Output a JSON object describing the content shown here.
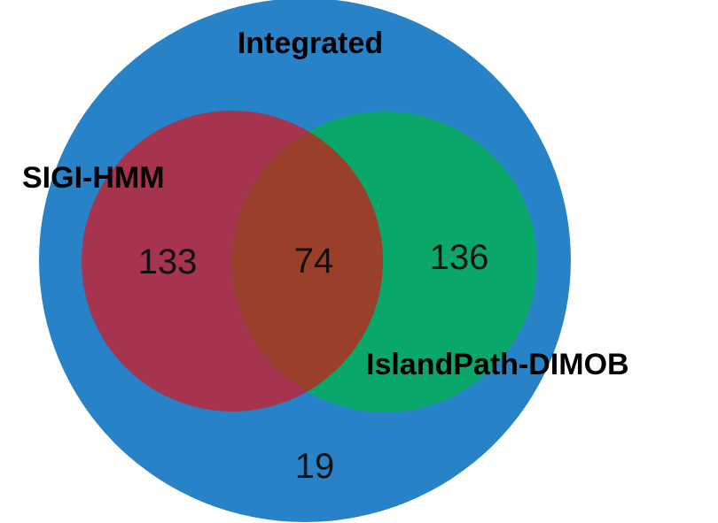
{
  "sets": {
    "integrated": {
      "label": "Integrated",
      "color": "#2882C8"
    },
    "sigi_hmm": {
      "label": "SIGI-HMM",
      "color": "#A6344F"
    },
    "islandpath_dimob": {
      "label": "IslandPath-DIMOB",
      "color": "#0AA76A"
    }
  },
  "overlap_color": "#9A3F2A",
  "counts": {
    "sigi_only": "133",
    "both": "74",
    "islandpath_only": "136",
    "integrated_only": "19"
  }
}
